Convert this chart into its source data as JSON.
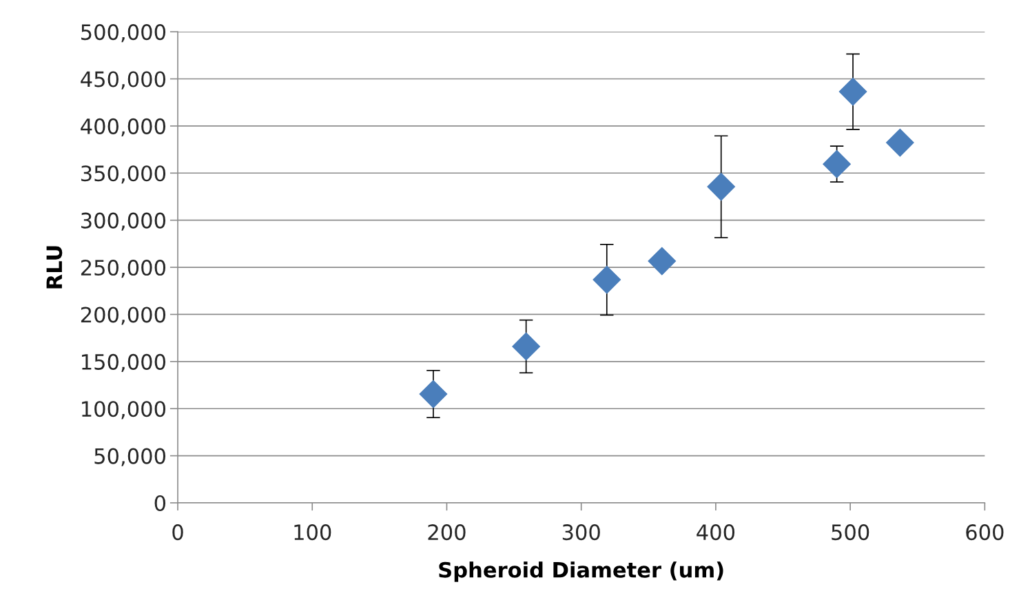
{
  "chart_data": {
    "type": "scatter",
    "xlabel": "Spheroid Diameter (um)",
    "ylabel": "RLU",
    "x": [
      190,
      259,
      319,
      360,
      404,
      490,
      502,
      537
    ],
    "values": [
      115500,
      166000,
      236800,
      256600,
      335500,
      359600,
      436400,
      382300
    ],
    "errors": [
      25000,
      28000,
      37500,
      null,
      54000,
      19000,
      40000,
      null
    ],
    "color": "#4a7ebb",
    "marker": "diamond",
    "grid": "y",
    "legend": false,
    "xlim": [
      0,
      600
    ],
    "xticks": [
      0,
      100,
      200,
      300,
      400,
      500,
      600
    ],
    "ylim": [
      0,
      500000
    ],
    "yticks": [
      {
        "value": 0,
        "label": "0"
      },
      {
        "value": 50000,
        "label": "50,000"
      },
      {
        "value": 100000,
        "label": "100,000"
      },
      {
        "value": 150000,
        "label": "150,000"
      },
      {
        "value": 200000,
        "label": "200,000"
      },
      {
        "value": 250000,
        "label": "250,000"
      },
      {
        "value": 300000,
        "label": "300,000"
      },
      {
        "value": 350000,
        "label": "350,000"
      },
      {
        "value": 400000,
        "label": "400,000"
      },
      {
        "value": 450000,
        "label": "450,000"
      },
      {
        "value": 500000,
        "label": "500,000"
      }
    ]
  }
}
